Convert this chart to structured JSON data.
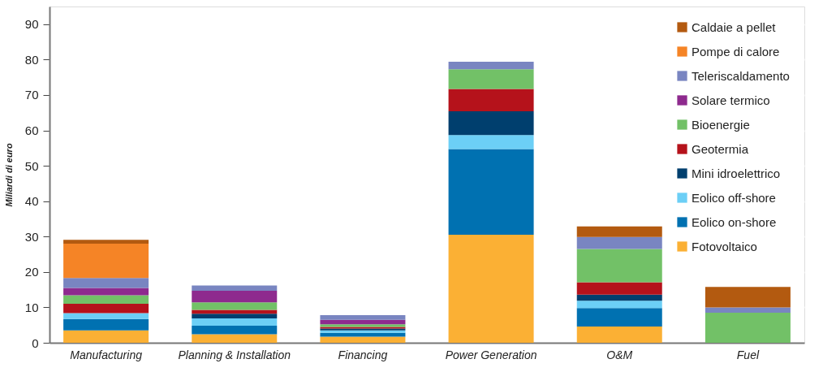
{
  "chart_data": {
    "type": "bar",
    "stacked": true,
    "ylabel": "Miliardi di euro",
    "categories": [
      "Manufacturing",
      "Planning & Installation",
      "Financing",
      "Power Generation",
      "O&M",
      "Fuel"
    ],
    "series": [
      {
        "name": "Fotovoltaico",
        "color": "#fbb034",
        "values": [
          3.5,
          2.4,
          1.7,
          30.5,
          4.6,
          0
        ]
      },
      {
        "name": "Eolico on-shore",
        "color": "#0071b1",
        "values": [
          3.2,
          2.4,
          1.1,
          24.2,
          5.2,
          0
        ]
      },
      {
        "name": "Eolico off-shore",
        "color": "#6ccff6",
        "values": [
          1.7,
          2.1,
          0.7,
          4.0,
          2.1,
          0
        ]
      },
      {
        "name": "Mini idroelettrico",
        "color": "#003f6e",
        "values": [
          0,
          1.3,
          0.5,
          6.7,
          1.7,
          0
        ]
      },
      {
        "name": "Geotermia",
        "color": "#b5121b",
        "values": [
          2.6,
          1.1,
          0.5,
          6.3,
          3.5,
          0
        ]
      },
      {
        "name": "Bioenergie",
        "color": "#72c167",
        "values": [
          2.4,
          2.1,
          0.7,
          5.6,
          9.4,
          8.5
        ]
      },
      {
        "name": "Solare termico",
        "color": "#8e2a8e",
        "values": [
          2.1,
          3.3,
          1.3,
          0,
          0,
          0
        ]
      },
      {
        "name": "Teleriscaldamento",
        "color": "#7985c1",
        "values": [
          2.8,
          1.5,
          1.3,
          2.1,
          3.4,
          1.5
        ]
      },
      {
        "name": "Pompe di calore",
        "color": "#f58426",
        "values": [
          9.7,
          0,
          0,
          0,
          0,
          0
        ]
      },
      {
        "name": "Caldaie a pellet",
        "color": "#b35a10",
        "values": [
          1.1,
          0,
          0,
          0,
          3.0,
          5.8
        ]
      }
    ],
    "ylim": [
      0,
      95
    ],
    "yticks": [
      0,
      10,
      20,
      30,
      40,
      50,
      60,
      70,
      80,
      90
    ],
    "grid": "y",
    "legend": "top right"
  }
}
